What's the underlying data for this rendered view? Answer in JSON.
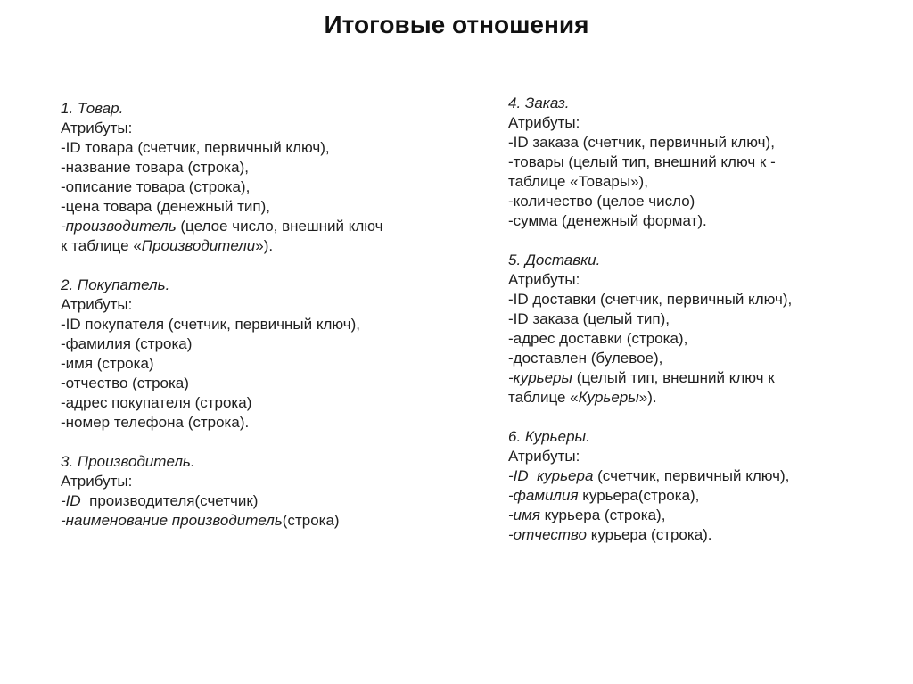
{
  "title": "Итоговые отношения",
  "colors": {
    "background": "#ffffff",
    "text": "#1f1f1f",
    "title": "#111111"
  },
  "columns": [
    {
      "blocks": [
        {
          "lines": [
            [
              {
                "t": "1. Товар.",
                "i": true
              }
            ],
            [
              {
                "t": "Атрибуты:",
                "i": false
              }
            ],
            [
              {
                "t": "-ID товара (счетчик, первичный ключ),",
                "i": false
              }
            ],
            [
              {
                "t": "-название товара (строка),",
                "i": false
              }
            ],
            [
              {
                "t": "-описание товара (строка),",
                "i": false
              }
            ],
            [
              {
                "t": "-цена товара (денежный тип),",
                "i": false
              }
            ],
            [
              {
                "t": "-производитель",
                "i": true
              },
              {
                "t": " (целое число, внешний ключ",
                "i": false
              }
            ],
            [
              {
                "t": "к таблице «",
                "i": false
              },
              {
                "t": "Производители",
                "i": true
              },
              {
                "t": "»).",
                "i": false
              }
            ]
          ]
        },
        {
          "lines": [
            [
              {
                "t": "2. Покупатель.",
                "i": true
              }
            ],
            [
              {
                "t": "Атрибуты:",
                "i": false
              }
            ],
            [
              {
                "t": "-ID покупателя (счетчик, первичный ключ),",
                "i": false
              }
            ],
            [
              {
                "t": "-фамилия (строка)",
                "i": false
              }
            ],
            [
              {
                "t": "-имя (строка)",
                "i": false
              }
            ],
            [
              {
                "t": "-отчество (строка)",
                "i": false
              }
            ],
            [
              {
                "t": "-адрес покупателя (строка)",
                "i": false
              }
            ],
            [
              {
                "t": "-номер телефона (строка).",
                "i": false
              }
            ]
          ]
        },
        {
          "lines": [
            [
              {
                "t": "3. Производитель.",
                "i": true
              }
            ],
            [
              {
                "t": "Атрибуты:",
                "i": false
              }
            ],
            [
              {
                "t": "-ID",
                "i": true
              },
              {
                "t": "  производителя(счетчик)",
                "i": false
              }
            ],
            [
              {
                "t": "-наименование производитель",
                "i": true
              },
              {
                "t": "(строка)",
                "i": false
              }
            ]
          ]
        }
      ]
    },
    {
      "blocks": [
        {
          "lines": [
            [
              {
                "t": "4. Заказ.",
                "i": true
              }
            ],
            [
              {
                "t": "Атрибуты:",
                "i": false
              }
            ],
            [
              {
                "t": "-ID заказа (счетчик, первичный ключ),",
                "i": false
              }
            ],
            [
              {
                "t": "-товары (целый тип, внешний ключ к -",
                "i": false
              }
            ],
            [
              {
                "t": "таблице «Товары»),",
                "i": false
              }
            ],
            [
              {
                "t": "-количество (целое число)",
                "i": false
              }
            ],
            [
              {
                "t": "-сумма (денежный формат).",
                "i": false
              }
            ]
          ]
        },
        {
          "lines": [
            [
              {
                "t": "5. Доставки.",
                "i": true
              }
            ],
            [
              {
                "t": "Атрибуты:",
                "i": false
              }
            ],
            [
              {
                "t": "-ID доставки (счетчик, первичный ключ),",
                "i": false
              }
            ],
            [
              {
                "t": "-ID заказа (целый тип),",
                "i": false
              }
            ],
            [
              {
                "t": "-адрес доставки (строка),",
                "i": false
              }
            ],
            [
              {
                "t": "-доставлен (булевое),",
                "i": false
              }
            ],
            [
              {
                "t": "-курьеры",
                "i": true
              },
              {
                "t": " (целый тип, внешний ключ к",
                "i": false
              }
            ],
            [
              {
                "t": "таблице «",
                "i": false
              },
              {
                "t": "Курьеры",
                "i": true
              },
              {
                "t": "»).",
                "i": false
              }
            ]
          ]
        },
        {
          "lines": [
            [
              {
                "t": "6. Курьеры.",
                "i": true
              }
            ],
            [
              {
                "t": "Атрибуты:",
                "i": false
              }
            ],
            [
              {
                "t": "-ID  курьера",
                "i": true
              },
              {
                "t": " (счетчик, первичный ключ),",
                "i": false
              }
            ],
            [
              {
                "t": "-фамилия",
                "i": true
              },
              {
                "t": " курьера(строка),",
                "i": false
              }
            ],
            [
              {
                "t": "-имя",
                "i": true
              },
              {
                "t": " курьера (строка),",
                "i": false
              }
            ],
            [
              {
                "t": "-отчество",
                "i": true
              },
              {
                "t": " курьера (строка).",
                "i": false
              }
            ]
          ]
        }
      ]
    }
  ]
}
